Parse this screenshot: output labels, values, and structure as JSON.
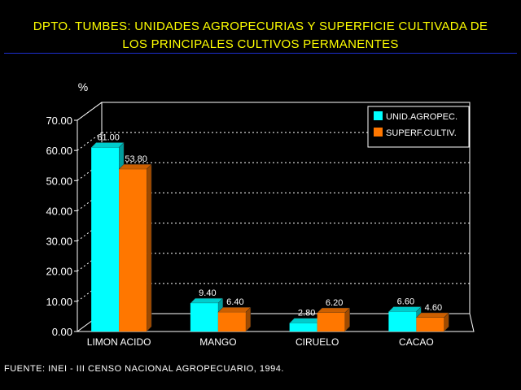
{
  "title_lines": [
    "DPTO. TUMBES: UNIDADES AGROPECURIAS Y SUPERFICIE CULTIVADA DE",
    "LOS PRINCIPALES CULTIVOS PERMANENTES"
  ],
  "source": "FUENTE: INEI - III CENSO NACIONAL AGROPECUARIO, 1994.",
  "colors": {
    "background": "#000000",
    "title": "#ffff00",
    "rule": "#1d2fd0",
    "series_unid": "#00ffff",
    "series_superf": "#ff7700",
    "text": "#ffffff"
  },
  "chart_data": {
    "type": "bar",
    "ylabel": "%",
    "ylim": [
      0,
      70
    ],
    "yticks": [
      "0.00",
      "10.00",
      "20.00",
      "30.00",
      "40.00",
      "50.00",
      "60.00",
      "70.00"
    ],
    "categories": [
      "LIMON ACIDO",
      "MANGO",
      "CIRUELO",
      "CACAO"
    ],
    "series": [
      {
        "name": "UNID.AGROPEC.",
        "values": [
          61.0,
          9.4,
          2.8,
          6.6
        ],
        "labels": [
          "61.00",
          "9.40",
          "2.80",
          "6.60"
        ],
        "color": "#00ffff"
      },
      {
        "name": "SUPERF.CULTIV.",
        "values": [
          53.8,
          6.4,
          6.2,
          4.6
        ],
        "labels": [
          "53.80",
          "6.40",
          "6.20",
          "4.60"
        ],
        "color": "#ff7700"
      }
    ],
    "grid": "dotted-horizontal",
    "legend_position": "top-right",
    "style": "3d"
  }
}
